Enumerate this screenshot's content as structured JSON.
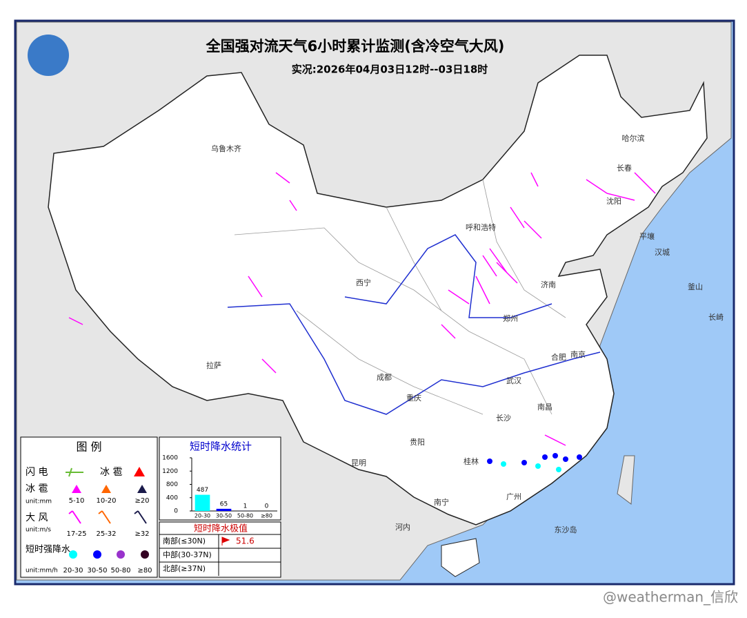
{
  "header": {
    "title": "全国强对流天气6小时累计监测(含冷空气大风)",
    "subtitle": "实况:2026年04月03日12时--03日18时"
  },
  "map": {
    "labels": [
      "乌鲁木齐",
      "哈尔滨",
      "长春",
      "沈阳",
      "呼和浩特",
      "平壤",
      "汉城",
      "釜山",
      "长崎",
      "西宁",
      "济南",
      "郑州",
      "拉萨",
      "成都",
      "合肥",
      "南京",
      "武汉",
      "重庆",
      "长沙",
      "南昌",
      "贵阳",
      "昆明",
      "桂林",
      "南宁",
      "广州",
      "河内",
      "东沙岛"
    ]
  },
  "legend": {
    "title": "图 例",
    "lightning": "闪 电",
    "hail_symbol": "冰 雹",
    "hail": "冰 雹",
    "hail_unit": "unit:mm",
    "hail_classes": [
      "5-10",
      "10-20",
      "≥20"
    ],
    "wind": "大 风",
    "wind_unit": "unit:m/s",
    "wind_classes": [
      "17-25",
      "25-32",
      "≥32"
    ],
    "rain": "短时强降水",
    "rain_unit": "unit:mm/h",
    "rain_classes": [
      "20-30",
      "30-50",
      "50-80",
      "≥80"
    ]
  },
  "stats": {
    "title": "短时降水统计",
    "categories": [
      "20-30",
      "30-50",
      "50-80",
      "≥80"
    ],
    "values": [
      487,
      65,
      1,
      0
    ],
    "colors": [
      "#00ffff",
      "#0000ff",
      "#0000ff",
      "#0000ff"
    ],
    "ylim": [
      0,
      1600
    ],
    "yticks": [
      0,
      400,
      800,
      1200,
      1600
    ]
  },
  "extremes": {
    "title": "短时降水极值",
    "rows": [
      {
        "region": "南部(≤30N)",
        "value": 51.6
      },
      {
        "region": "中部(30-37N)"
      },
      {
        "region": "北部(≥37N)"
      }
    ]
  },
  "watermark": "@weatherman_信欣"
}
